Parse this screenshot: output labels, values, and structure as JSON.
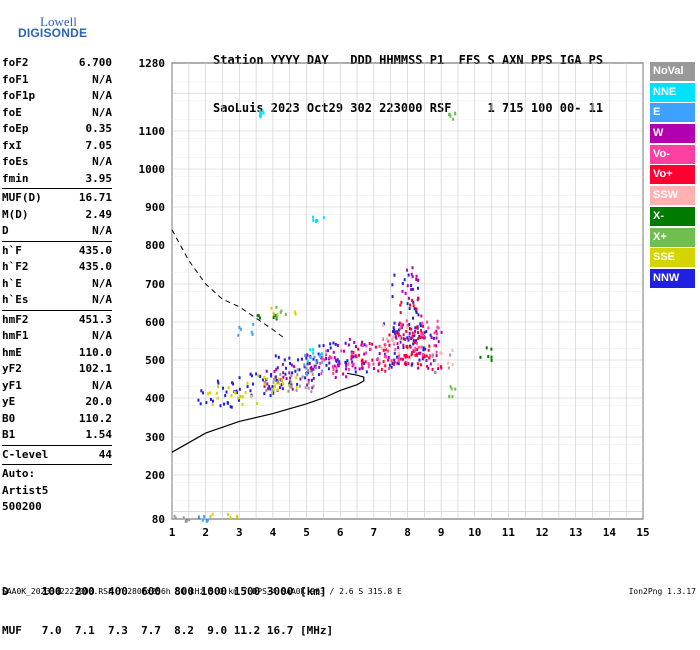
{
  "logo": {
    "line1": "Lowell",
    "line2": "DIGISONDE"
  },
  "header": {
    "labels": "Station YYYY DAY   DDD HHMMSS P1  FFS S AXN PPS IGA PS",
    "values": "SaoLuis 2023 Oct29 302 223000 RSF     1 715 100 00- 11"
  },
  "params": {
    "group1": [
      {
        "k": "foF2",
        "v": "6.700"
      },
      {
        "k": "foF1",
        "v": "N/A"
      },
      {
        "k": "foF1p",
        "v": "N/A"
      },
      {
        "k": "foE",
        "v": "N/A"
      },
      {
        "k": "foEp",
        "v": "0.35"
      },
      {
        "k": "fxI",
        "v": "7.05"
      },
      {
        "k": "foEs",
        "v": "N/A"
      },
      {
        "k": "fmin",
        "v": "3.95"
      }
    ],
    "group2": [
      {
        "k": "MUF(D)",
        "v": "16.71"
      },
      {
        "k": "M(D)",
        "v": "2.49"
      },
      {
        "k": "D",
        "v": "N/A"
      }
    ],
    "group3": [
      {
        "k": "h`F",
        "v": "435.0"
      },
      {
        "k": "h`F2",
        "v": "435.0"
      },
      {
        "k": "h`E",
        "v": "N/A"
      },
      {
        "k": "h`Es",
        "v": "N/A"
      }
    ],
    "group4": [
      {
        "k": "hmF2",
        "v": "451.3"
      },
      {
        "k": "hmF1",
        "v": "N/A"
      },
      {
        "k": "hmE",
        "v": "110.0"
      },
      {
        "k": "yF2",
        "v": "102.1"
      },
      {
        "k": "yF1",
        "v": "N/A"
      },
      {
        "k": "yE",
        "v": "20.0"
      },
      {
        "k": "B0",
        "v": "110.2"
      },
      {
        "k": "B1",
        "v": "1.54"
      }
    ],
    "group5": [
      {
        "k": "C-level",
        "v": "44"
      }
    ],
    "auto": [
      "Auto:",
      "Artist5",
      "500200"
    ]
  },
  "legend": [
    {
      "label": "NoVal",
      "color": "#999999"
    },
    {
      "label": "NNE",
      "color": "#00e0ff"
    },
    {
      "label": "E",
      "color": "#3ea0ff"
    },
    {
      "label": "W",
      "color": "#b000b0"
    },
    {
      "label": "Vo-",
      "color": "#ff40a0"
    },
    {
      "label": "Vo+",
      "color": "#ff0030"
    },
    {
      "label": "SSW",
      "color": "#ffb0b0"
    },
    {
      "label": "X-",
      "color": "#007a00"
    },
    {
      "label": "X+",
      "color": "#6fbf4f"
    },
    {
      "label": "SSE",
      "color": "#d4d400"
    },
    {
      "label": "NNW",
      "color": "#2020e0"
    }
  ],
  "bottom": {
    "d_row": "D     100  200  400  600  800 1000 1500 3000 [km]",
    "muf_row": "MUF   7.0  7.1  7.3  7.7  8.2  9.0 11.2 16.7 [MHz]"
  },
  "footer": "SAA0K_2023302223000.RSF / 280fx256h 50 kHz 5.0 km / DPS-4 SAA0K 903 / 2.6 S 315.8 E",
  "version": "Ion2Png 1.3.17",
  "chart_data": {
    "type": "scatter",
    "title": "",
    "xlabel": "",
    "ylabel": "",
    "xlim": [
      1,
      15
    ],
    "ylim": [
      80,
      1280
    ],
    "xticks": [
      1,
      2,
      3,
      4,
      5,
      6,
      7,
      8,
      9,
      10,
      11,
      12,
      13,
      14,
      15
    ],
    "yticks": [
      80,
      200,
      300,
      400,
      500,
      600,
      700,
      800,
      900,
      1000,
      1100,
      1280
    ],
    "grid": true,
    "legend_position": "right",
    "series": [
      {
        "color": "#2020e0",
        "clusters": [
          [
            2.3,
            400,
            0.7,
            30
          ],
          [
            3.5,
            440,
            1.2,
            30
          ],
          [
            4.8,
            480,
            0.9,
            40
          ],
          [
            6.0,
            510,
            0.8,
            40
          ],
          [
            8.0,
            540,
            0.8,
            60
          ],
          [
            7.9,
            640,
            0.4,
            90
          ]
        ]
      },
      {
        "color": "#b000b0",
        "clusters": [
          [
            4.5,
            460,
            0.8,
            35
          ],
          [
            5.5,
            490,
            0.7,
            40
          ],
          [
            6.5,
            520,
            0.7,
            40
          ],
          [
            8.2,
            530,
            0.8,
            50
          ],
          [
            8.0,
            700,
            0.3,
            50
          ]
        ]
      },
      {
        "color": "#ff0030",
        "clusters": [
          [
            6.8,
            510,
            0.6,
            40
          ],
          [
            7.9,
            540,
            0.6,
            50
          ],
          [
            8.5,
            510,
            0.6,
            35
          ],
          [
            8.1,
            620,
            0.4,
            60
          ]
        ]
      },
      {
        "color": "#ff40a0",
        "clusters": [
          [
            5.8,
            500,
            0.6,
            35
          ],
          [
            7.2,
            520,
            0.6,
            40
          ],
          [
            8.3,
            560,
            0.6,
            50
          ]
        ]
      },
      {
        "color": "#d4d400",
        "clusters": [
          [
            2.8,
            410,
            0.8,
            25
          ],
          [
            4.0,
            440,
            0.8,
            25
          ],
          [
            4.3,
            630,
            0.4,
            15
          ],
          [
            2.5,
            90,
            0.5,
            10
          ]
        ]
      },
      {
        "color": "#3ea0ff",
        "clusters": [
          [
            5.3,
            490,
            0.4,
            30
          ],
          [
            1.9,
            85,
            0.3,
            8
          ],
          [
            3.1,
            580,
            0.3,
            20
          ]
        ]
      },
      {
        "color": "#00e0ff",
        "clusters": [
          [
            5.2,
            520,
            0.3,
            25
          ],
          [
            3.6,
            1150,
            0.1,
            10
          ],
          [
            5.3,
            870,
            0.2,
            10
          ]
        ]
      },
      {
        "color": "#007a00",
        "clusters": [
          [
            10.3,
            520,
            0.2,
            20
          ],
          [
            3.8,
            620,
            0.3,
            15
          ]
        ]
      },
      {
        "color": "#6fbf4f",
        "clusters": [
          [
            9.3,
            420,
            0.1,
            15
          ],
          [
            9.3,
            1145,
            0.1,
            10
          ],
          [
            4.2,
            630,
            0.3,
            15
          ]
        ]
      },
      {
        "color": "#999999",
        "clusters": [
          [
            1.3,
            85,
            0.3,
            8
          ],
          [
            4.5,
            450,
            0.8,
            30
          ],
          [
            9.0,
            500,
            0.3,
            30
          ]
        ]
      },
      {
        "color": "#ffb0b0",
        "clusters": [
          [
            7.6,
            560,
            0.4,
            40
          ],
          [
            9.1,
            510,
            0.3,
            20
          ]
        ]
      }
    ],
    "dashed_curve": [
      [
        1.0,
        840
      ],
      [
        1.5,
        760
      ],
      [
        2.0,
        700
      ],
      [
        2.5,
        660
      ],
      [
        3.0,
        640
      ],
      [
        3.5,
        610
      ],
      [
        4.0,
        580
      ],
      [
        4.3,
        560
      ]
    ],
    "profile_curve": [
      [
        1.0,
        260
      ],
      [
        1.5,
        285
      ],
      [
        2.0,
        310
      ],
      [
        3.0,
        340
      ],
      [
        4.0,
        360
      ],
      [
        5.0,
        385
      ],
      [
        5.5,
        400
      ],
      [
        6.0,
        420
      ],
      [
        6.5,
        435
      ],
      [
        6.7,
        445
      ],
      [
        6.7,
        455
      ],
      [
        6.5,
        460
      ],
      [
        6.2,
        465
      ]
    ]
  }
}
